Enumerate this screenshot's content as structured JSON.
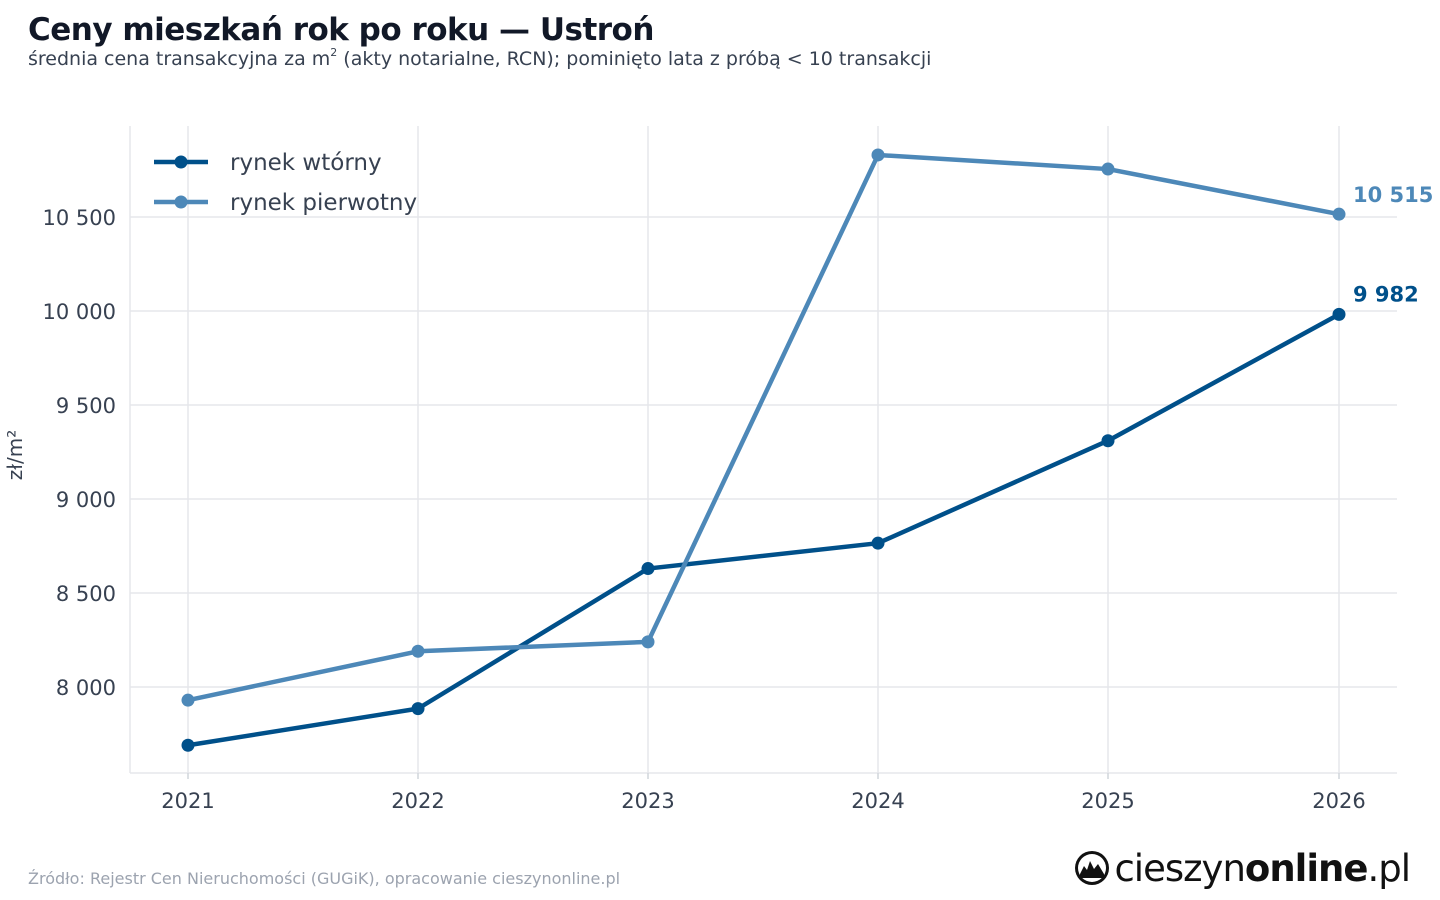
{
  "header": {
    "title": "Ceny mieszkań rok po roku — Ustroń",
    "subtitle_before": "średnia cena transakcyjna za m",
    "subtitle_sup": "2",
    "subtitle_after": " (akty notarialne, RCN); pominięto lata z próbą < 10 transakcji"
  },
  "footer": {
    "source": "Źródło: Rejestr Cen Nieruchomości (GUGiK), opracowanie cieszynonline.pl",
    "logo_text_light": "cieszyn",
    "logo_text_bold": "online",
    "logo_text_suffix": ".pl",
    "logo_icon": "town-emblem-icon"
  },
  "chart_data": {
    "type": "line",
    "x": [
      "2021",
      "2022",
      "2023",
      "2024",
      "2025",
      "2026"
    ],
    "ylabel": "zł/m²",
    "ylim": [
      7540,
      11000
    ],
    "yticks": [
      8000,
      8500,
      9000,
      9500,
      10000,
      10500
    ],
    "ytick_labels": [
      "8 000",
      "8 500",
      "9 000",
      "9 500",
      "10 000",
      "10 500"
    ],
    "grid": true,
    "legend_position": "top-left",
    "series": [
      {
        "name": "rynek wtórny",
        "color": "#00508a",
        "values": [
          7690,
          7885,
          8630,
          8765,
          9310,
          9982
        ],
        "end_label": "9 982"
      },
      {
        "name": "rynek pierwotny",
        "color": "#4d88b8",
        "values": [
          7930,
          8190,
          8240,
          10830,
          10755,
          10515
        ],
        "end_label": "10 515"
      }
    ]
  }
}
